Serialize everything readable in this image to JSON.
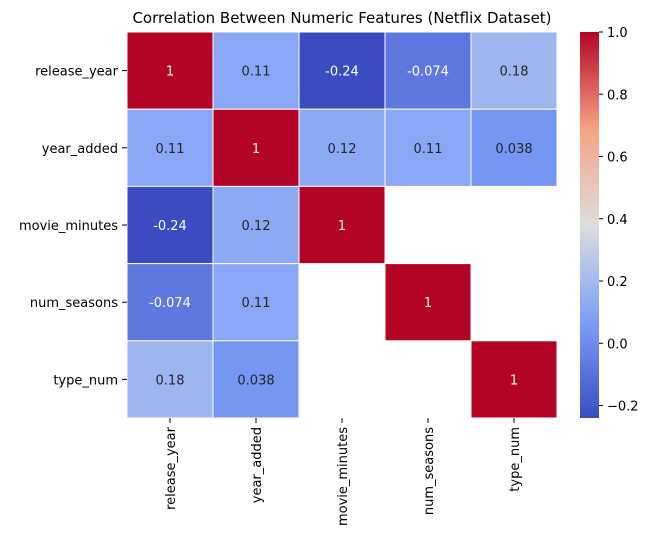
{
  "chart_data": {
    "type": "heatmap",
    "title": "Correlation Between Numeric Features (Netflix Dataset)",
    "row_labels": [
      "release_year",
      "year_added",
      "movie_minutes",
      "num_seasons",
      "type_num"
    ],
    "col_labels": [
      "release_year",
      "year_added",
      "movie_minutes",
      "num_seasons",
      "type_num"
    ],
    "values": [
      [
        1,
        0.11,
        -0.24,
        -0.074,
        0.18
      ],
      [
        0.11,
        1,
        0.12,
        0.11,
        0.038
      ],
      [
        -0.24,
        0.12,
        1,
        null,
        null
      ],
      [
        -0.074,
        0.11,
        null,
        1,
        null
      ],
      [
        0.18,
        0.038,
        null,
        null,
        1
      ]
    ],
    "annotations": [
      [
        "1",
        "0.11",
        "-0.24",
        "-0.074",
        "0.18"
      ],
      [
        "0.11",
        "1",
        "0.12",
        "0.11",
        "0.038"
      ],
      [
        "-0.24",
        "0.12",
        "1",
        "",
        ""
      ],
      [
        "-0.074",
        "0.11",
        "",
        "1",
        ""
      ],
      [
        "0.18",
        "0.038",
        "",
        "",
        "1"
      ]
    ],
    "colormap": "coolwarm",
    "vmin": -0.24,
    "vmax": 1.0,
    "colorbar": {
      "ticks": [
        1.0,
        0.8,
        0.6,
        0.4,
        0.2,
        0.0,
        -0.2
      ],
      "tick_labels": [
        "1.0",
        "0.8",
        "0.6",
        "0.4",
        "0.2",
        "0.0",
        "−0.2"
      ]
    },
    "colors": {
      "low": "#3b4cc0",
      "high": "#b40426",
      "mid": "#dddddd",
      "empty": "#ffffff"
    }
  }
}
